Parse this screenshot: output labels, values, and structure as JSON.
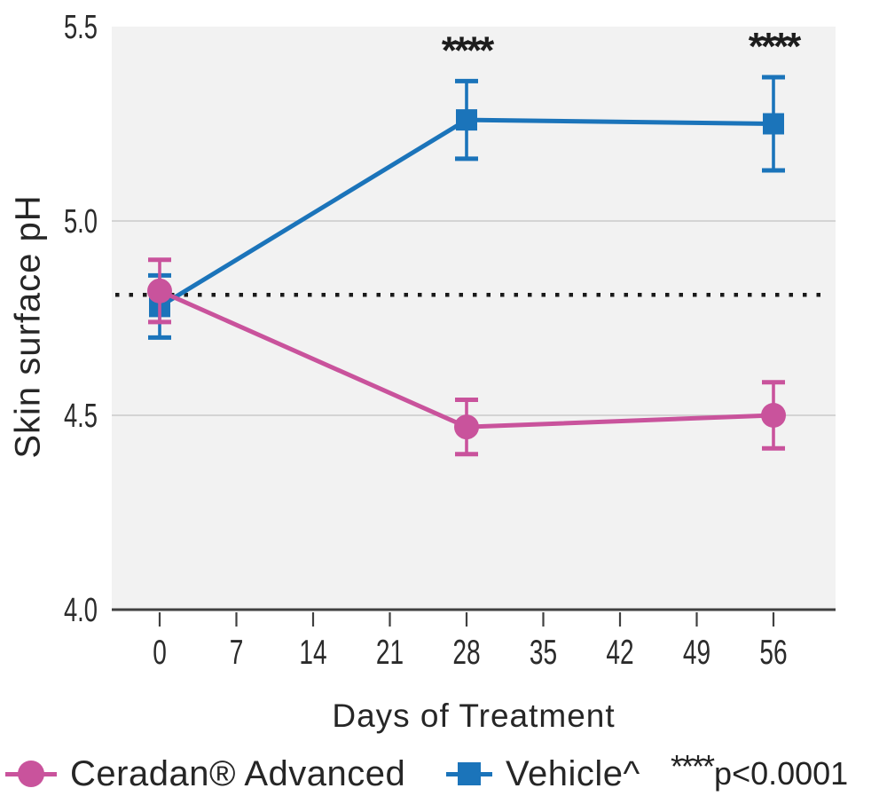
{
  "figure": {
    "y_axis_title": "Skin surface pH",
    "x_axis_title": "Days of Treatment",
    "note_stars": "****",
    "note_text": "p<0.0001"
  },
  "colors": {
    "ceradan_pink": "#c9539c",
    "vehicle_blue": "#1b74ba",
    "plot_background": "#f2f2f2",
    "gridline": "#c9c9c9",
    "axis": "#404040",
    "text": "#2b2b2b",
    "baseline_dots": "#1a1a1a",
    "significance_text": "#1d1d1d"
  },
  "chart_data": {
    "type": "line",
    "title": "",
    "xlabel": "Days of Treatment",
    "ylabel": "Skin surface pH",
    "x": [
      0,
      28,
      56
    ],
    "x_ticks": [
      0,
      7,
      14,
      21,
      28,
      35,
      42,
      49,
      56
    ],
    "y_ticks": [
      4.0,
      4.5,
      5.0,
      5.5
    ],
    "ylim": [
      4.0,
      5.5
    ],
    "baseline": 4.81,
    "grid": "horizontal",
    "legend_position": "bottom",
    "series": [
      {
        "name": "Ceradan® Advanced",
        "marker": "circle",
        "color": "#c9539c",
        "values": [
          4.82,
          4.47,
          4.5
        ],
        "errors": [
          0.08,
          0.07,
          0.085
        ],
        "significance": [
          "",
          "",
          ""
        ]
      },
      {
        "name": "Vehicle^",
        "marker": "square",
        "color": "#1b74ba",
        "values": [
          4.78,
          5.26,
          5.25
        ],
        "errors": [
          0.08,
          0.1,
          0.12
        ],
        "significance": [
          "",
          "****",
          "****"
        ]
      }
    ],
    "annotations": {
      "significance_note": "****p<0.0001"
    }
  }
}
